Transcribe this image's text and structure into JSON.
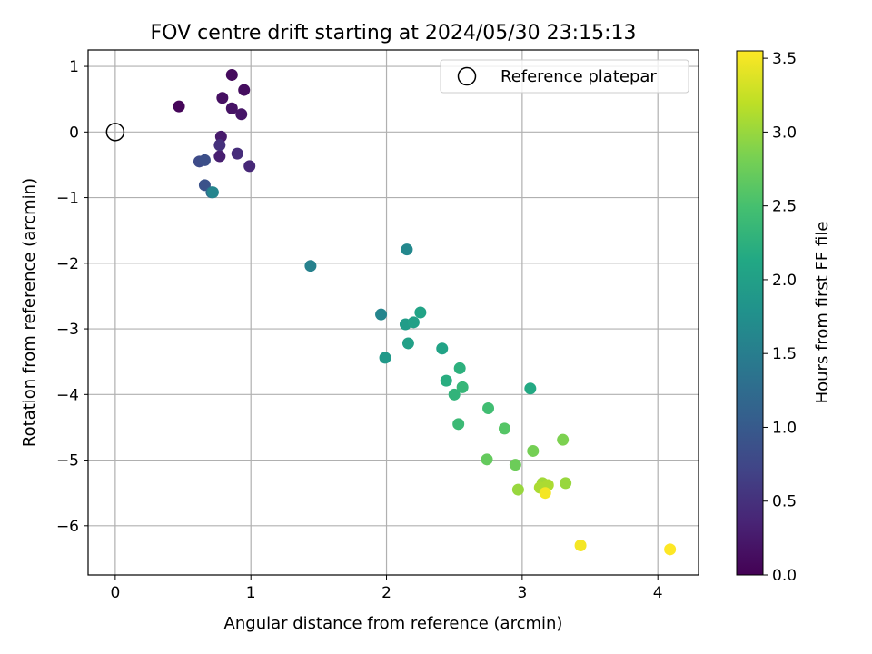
{
  "chart_data": {
    "type": "scatter",
    "title": "FOV centre drift starting at 2024/05/30 23:15:13",
    "xlabel": "Angular distance from reference (arcmin)",
    "ylabel": "Rotation from reference (arcmin)",
    "xlim": [
      -0.2,
      4.3
    ],
    "ylim": [
      -6.75,
      1.25
    ],
    "xticks": [
      0,
      1,
      2,
      3,
      4
    ],
    "yticks": [
      1,
      0,
      -1,
      -2,
      -3,
      -4,
      -5,
      -6
    ],
    "tick_labels": {
      "x": [
        "0",
        "1",
        "2",
        "3",
        "4"
      ],
      "y": [
        "1",
        "0",
        "−1",
        "−2",
        "−3",
        "−4",
        "−5",
        "−6"
      ]
    },
    "grid": true,
    "legend": {
      "position": "top-right",
      "entries": [
        "Reference platepar"
      ]
    },
    "reference_point": {
      "name": "Reference platepar",
      "x": 0,
      "y": 0,
      "marker": "open-circle"
    },
    "colorbar": {
      "label": "Hours from first FF file",
      "range": [
        0,
        3.55
      ],
      "colormap": "viridis",
      "ticks": [
        0.0,
        0.5,
        1.0,
        1.5,
        2.0,
        2.5,
        3.0,
        3.5
      ],
      "tick_labels": [
        "0.0",
        "0.5",
        "1.0",
        "1.5",
        "2.0",
        "2.5",
        "3.0",
        "3.5"
      ]
    },
    "points": [
      {
        "x": 0.47,
        "y": 0.39,
        "c": 0.05
      },
      {
        "x": 0.86,
        "y": 0.87,
        "c": 0.1
      },
      {
        "x": 0.95,
        "y": 0.64,
        "c": 0.12
      },
      {
        "x": 0.79,
        "y": 0.52,
        "c": 0.15
      },
      {
        "x": 0.86,
        "y": 0.36,
        "c": 0.18
      },
      {
        "x": 0.93,
        "y": 0.27,
        "c": 0.2
      },
      {
        "x": 0.78,
        "y": -0.07,
        "c": 0.25
      },
      {
        "x": 0.77,
        "y": -0.37,
        "c": 0.3
      },
      {
        "x": 0.77,
        "y": -0.2,
        "c": 0.5
      },
      {
        "x": 0.9,
        "y": -0.33,
        "c": 0.45
      },
      {
        "x": 0.99,
        "y": -0.52,
        "c": 0.4
      },
      {
        "x": 0.62,
        "y": -0.45,
        "c": 0.8
      },
      {
        "x": 0.66,
        "y": -0.43,
        "c": 0.85
      },
      {
        "x": 0.66,
        "y": -0.81,
        "c": 0.9
      },
      {
        "x": 0.71,
        "y": -0.92,
        "c": 1.25
      },
      {
        "x": 0.72,
        "y": -0.92,
        "c": 1.6
      },
      {
        "x": 1.44,
        "y": -2.04,
        "c": 1.55
      },
      {
        "x": 2.15,
        "y": -1.79,
        "c": 1.65
      },
      {
        "x": 1.96,
        "y": -2.78,
        "c": 1.6
      },
      {
        "x": 1.99,
        "y": -3.44,
        "c": 1.9
      },
      {
        "x": 2.14,
        "y": -2.93,
        "c": 1.95
      },
      {
        "x": 2.2,
        "y": -2.9,
        "c": 2.0
      },
      {
        "x": 2.25,
        "y": -2.75,
        "c": 2.05
      },
      {
        "x": 2.16,
        "y": -3.22,
        "c": 2.0
      },
      {
        "x": 2.41,
        "y": -3.3,
        "c": 2.05
      },
      {
        "x": 2.44,
        "y": -3.79,
        "c": 2.2
      },
      {
        "x": 2.54,
        "y": -3.6,
        "c": 2.25
      },
      {
        "x": 2.5,
        "y": -4.0,
        "c": 2.3
      },
      {
        "x": 2.56,
        "y": -3.89,
        "c": 2.35
      },
      {
        "x": 2.53,
        "y": -4.45,
        "c": 2.4
      },
      {
        "x": 2.75,
        "y": -4.21,
        "c": 2.45
      },
      {
        "x": 3.06,
        "y": -3.91,
        "c": 2.15
      },
      {
        "x": 2.87,
        "y": -4.52,
        "c": 2.6
      },
      {
        "x": 2.74,
        "y": -4.99,
        "c": 2.7
      },
      {
        "x": 2.95,
        "y": -5.07,
        "c": 2.75
      },
      {
        "x": 3.08,
        "y": -4.86,
        "c": 2.8
      },
      {
        "x": 3.3,
        "y": -4.69,
        "c": 2.85
      },
      {
        "x": 2.97,
        "y": -5.45,
        "c": 3.0
      },
      {
        "x": 3.15,
        "y": -5.35,
        "c": 3.05
      },
      {
        "x": 3.13,
        "y": -5.42,
        "c": 3.1
      },
      {
        "x": 3.19,
        "y": -5.38,
        "c": 3.1
      },
      {
        "x": 3.32,
        "y": -5.35,
        "c": 3.0
      },
      {
        "x": 3.17,
        "y": -5.5,
        "c": 3.5
      },
      {
        "x": 3.43,
        "y": -6.3,
        "c": 3.5
      },
      {
        "x": 4.09,
        "y": -6.36,
        "c": 3.55
      }
    ]
  }
}
